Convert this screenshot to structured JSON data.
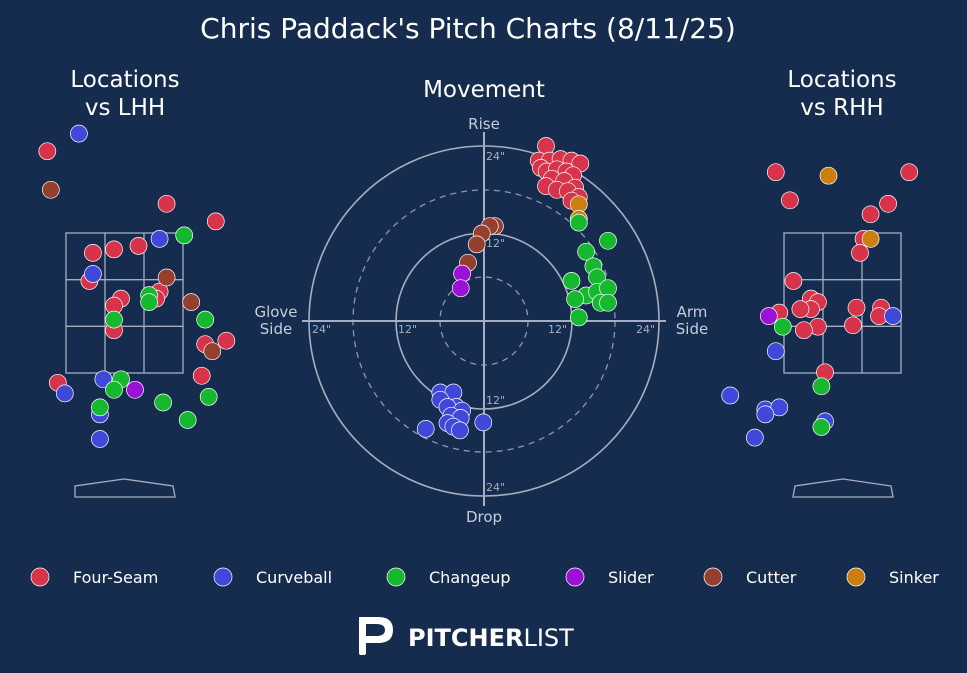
{
  "title": "Chris Paddack's Pitch Charts (8/11/25)",
  "panels": {
    "left": {
      "title_line1": "Locations",
      "title_line2": "vs LHH"
    },
    "center": {
      "title": "Movement",
      "top_label": "Rise",
      "bottom_label": "Drop",
      "left_label_line1": "Glove",
      "left_label_line2": "Side",
      "right_label_line1": "Arm",
      "right_label_line2": "Side",
      "ring_labels": {
        "inner": "12\"",
        "outer": "24\""
      }
    },
    "right": {
      "title_line1": "Locations",
      "title_line2": "vs RHH"
    }
  },
  "colors": {
    "background": "#162c4e",
    "Four-Seam": "#d7334b",
    "Curveball": "#3f48d8",
    "Changeup": "#16b830",
    "Slider": "#9b12d6",
    "Cutter": "#95402f",
    "Sinker": "#cc7f10",
    "grid": "#a6aec0"
  },
  "legend": [
    "Four-Seam",
    "Curveball",
    "Changeup",
    "Slider",
    "Cutter",
    "Sinker"
  ],
  "brand": {
    "text_bold": "PITCHER",
    "text_light": "LIST",
    "logo_icon": "pitcherlist-p-icon"
  },
  "chart_data": [
    {
      "type": "scatter",
      "name": "Locations vs LHH",
      "x_unit": "ft (catcher view, plate-centered)",
      "y_unit": "ft above ground",
      "points": [
        {
          "pitch": "Four-Seam",
          "x": -1.1,
          "y": 4.2
        },
        {
          "pitch": "Four-Seam",
          "x": -2.2,
          "y": 3.15
        },
        {
          "pitch": "Four-Seam",
          "x": 0.6,
          "y": 3.45
        },
        {
          "pitch": "Four-Seam",
          "x": 1.3,
          "y": 3.2
        },
        {
          "pitch": "Four-Seam",
          "x": -0.15,
          "y": 2.8
        },
        {
          "pitch": "Four-Seam",
          "x": 0.2,
          "y": 2.85
        },
        {
          "pitch": "Four-Seam",
          "x": -0.45,
          "y": 2.75
        },
        {
          "pitch": "Four-Seam",
          "x": -0.5,
          "y": 2.35
        },
        {
          "pitch": "Four-Seam",
          "x": -0.05,
          "y": 2.1
        },
        {
          "pitch": "Four-Seam",
          "x": 0.5,
          "y": 2.2
        },
        {
          "pitch": "Four-Seam",
          "x": 0.45,
          "y": 2.1
        },
        {
          "pitch": "Four-Seam",
          "x": -0.15,
          "y": 2.0
        },
        {
          "pitch": "Four-Seam",
          "x": -0.15,
          "y": 1.65
        },
        {
          "pitch": "Four-Seam",
          "x": 1.45,
          "y": 1.5
        },
        {
          "pitch": "Four-Seam",
          "x": 1.15,
          "y": 1.45
        },
        {
          "pitch": "Four-Seam",
          "x": -0.95,
          "y": 0.9
        },
        {
          "pitch": "Four-Seam",
          "x": 1.1,
          "y": 1.0
        },
        {
          "pitch": "Curveball",
          "x": -0.65,
          "y": 4.45
        },
        {
          "pitch": "Curveball",
          "x": 0.5,
          "y": 2.95
        },
        {
          "pitch": "Curveball",
          "x": -0.45,
          "y": 2.45
        },
        {
          "pitch": "Curveball",
          "x": -0.3,
          "y": 0.95
        },
        {
          "pitch": "Curveball",
          "x": -0.85,
          "y": 0.75
        },
        {
          "pitch": "Curveball",
          "x": -0.35,
          "y": 0.45
        },
        {
          "pitch": "Curveball",
          "x": -0.35,
          "y": 0.1
        },
        {
          "pitch": "Changeup",
          "x": 0.85,
          "y": 3.0
        },
        {
          "pitch": "Changeup",
          "x": 0.35,
          "y": 2.15
        },
        {
          "pitch": "Changeup",
          "x": 0.35,
          "y": 2.05
        },
        {
          "pitch": "Changeup",
          "x": -0.15,
          "y": 1.8
        },
        {
          "pitch": "Changeup",
          "x": 1.15,
          "y": 1.8
        },
        {
          "pitch": "Changeup",
          "x": -0.05,
          "y": 0.95
        },
        {
          "pitch": "Changeup",
          "x": -0.15,
          "y": 0.8
        },
        {
          "pitch": "Changeup",
          "x": 1.2,
          "y": 0.7
        },
        {
          "pitch": "Changeup",
          "x": -0.35,
          "y": 0.55
        },
        {
          "pitch": "Changeup",
          "x": 0.55,
          "y": 0.62
        },
        {
          "pitch": "Changeup",
          "x": 0.9,
          "y": 0.37
        },
        {
          "pitch": "Slider",
          "x": 0.15,
          "y": 0.8
        },
        {
          "pitch": "Cutter",
          "x": -1.05,
          "y": 3.65
        },
        {
          "pitch": "Cutter",
          "x": 0.6,
          "y": 2.4
        },
        {
          "pitch": "Cutter",
          "x": 0.95,
          "y": 2.05
        },
        {
          "pitch": "Cutter",
          "x": 1.25,
          "y": 1.35
        }
      ]
    },
    {
      "type": "scatter",
      "name": "Movement",
      "x_label": "Glove Side / Arm Side",
      "y_label": "Drop / Rise",
      "x_unit": "in (horizontal break)",
      "y_unit": "in (induced vertical break)",
      "xlim": [
        -30,
        30
      ],
      "ylim": [
        -30,
        30
      ],
      "rings_in": [
        6,
        12,
        18,
        24
      ],
      "points": [
        {
          "pitch": "Four-Seam",
          "x": 8.5,
          "y": 24.0
        },
        {
          "pitch": "Four-Seam",
          "x": 7.5,
          "y": 22.0
        },
        {
          "pitch": "Four-Seam",
          "x": 9.0,
          "y": 22.0
        },
        {
          "pitch": "Four-Seam",
          "x": 10.5,
          "y": 22.2
        },
        {
          "pitch": "Four-Seam",
          "x": 12.0,
          "y": 22.0
        },
        {
          "pitch": "Four-Seam",
          "x": 13.2,
          "y": 21.6
        },
        {
          "pitch": "Four-Seam",
          "x": 7.8,
          "y": 21.0
        },
        {
          "pitch": "Four-Seam",
          "x": 8.6,
          "y": 20.5
        },
        {
          "pitch": "Four-Seam",
          "x": 10.0,
          "y": 20.8
        },
        {
          "pitch": "Four-Seam",
          "x": 11.3,
          "y": 20.5
        },
        {
          "pitch": "Four-Seam",
          "x": 12.2,
          "y": 20.0
        },
        {
          "pitch": "Four-Seam",
          "x": 9.3,
          "y": 19.5
        },
        {
          "pitch": "Four-Seam",
          "x": 11.0,
          "y": 19.2
        },
        {
          "pitch": "Four-Seam",
          "x": 8.5,
          "y": 18.5
        },
        {
          "pitch": "Four-Seam",
          "x": 12.5,
          "y": 18.3
        },
        {
          "pitch": "Four-Seam",
          "x": 10.0,
          "y": 18.0
        },
        {
          "pitch": "Four-Seam",
          "x": 11.5,
          "y": 17.8
        },
        {
          "pitch": "Four-Seam",
          "x": 13.0,
          "y": 17.0
        },
        {
          "pitch": "Four-Seam",
          "x": 12.0,
          "y": 16.5
        },
        {
          "pitch": "Sinker",
          "x": 13.0,
          "y": 16.0
        },
        {
          "pitch": "Sinker",
          "x": 13.0,
          "y": 14.0
        },
        {
          "pitch": "Changeup",
          "x": 13.0,
          "y": 13.5
        },
        {
          "pitch": "Changeup",
          "x": 17.0,
          "y": 11.0
        },
        {
          "pitch": "Changeup",
          "x": 14.0,
          "y": 9.5
        },
        {
          "pitch": "Changeup",
          "x": 15.0,
          "y": 7.5
        },
        {
          "pitch": "Changeup",
          "x": 15.5,
          "y": 6.0
        },
        {
          "pitch": "Changeup",
          "x": 12.0,
          "y": 5.5
        },
        {
          "pitch": "Changeup",
          "x": 14.0,
          "y": 3.5
        },
        {
          "pitch": "Changeup",
          "x": 15.5,
          "y": 4.0
        },
        {
          "pitch": "Changeup",
          "x": 17.0,
          "y": 4.5
        },
        {
          "pitch": "Changeup",
          "x": 12.5,
          "y": 3.0
        },
        {
          "pitch": "Changeup",
          "x": 16.0,
          "y": 2.5
        },
        {
          "pitch": "Changeup",
          "x": 17.0,
          "y": 2.5
        },
        {
          "pitch": "Changeup",
          "x": 13.0,
          "y": 0.5
        },
        {
          "pitch": "Cutter",
          "x": 1.5,
          "y": 13.0
        },
        {
          "pitch": "Cutter",
          "x": 0.8,
          "y": 13.0
        },
        {
          "pitch": "Cutter",
          "x": -0.3,
          "y": 12.0
        },
        {
          "pitch": "Cutter",
          "x": -1.0,
          "y": 10.5
        },
        {
          "pitch": "Cutter",
          "x": -2.2,
          "y": 8.0
        },
        {
          "pitch": "Slider",
          "x": -3.0,
          "y": 6.5
        },
        {
          "pitch": "Slider",
          "x": -3.2,
          "y": 4.5
        },
        {
          "pitch": "Curveball",
          "x": -6.0,
          "y": -9.8
        },
        {
          "pitch": "Curveball",
          "x": -4.2,
          "y": -9.8
        },
        {
          "pitch": "Curveball",
          "x": -6.0,
          "y": -10.8
        },
        {
          "pitch": "Curveball",
          "x": -3.8,
          "y": -11.8
        },
        {
          "pitch": "Curveball",
          "x": -5.0,
          "y": -11.8
        },
        {
          "pitch": "Curveball",
          "x": -3.0,
          "y": -12.3
        },
        {
          "pitch": "Curveball",
          "x": -4.5,
          "y": -13.0
        },
        {
          "pitch": "Curveball",
          "x": -3.2,
          "y": -13.3
        },
        {
          "pitch": "Curveball",
          "x": -5.0,
          "y": -14.0
        },
        {
          "pitch": "Curveball",
          "x": -4.2,
          "y": -14.5
        },
        {
          "pitch": "Curveball",
          "x": -3.3,
          "y": -15.0
        },
        {
          "pitch": "Curveball",
          "x": -8.0,
          "y": -14.8
        },
        {
          "pitch": "Curveball",
          "x": -0.1,
          "y": -13.9
        }
      ]
    },
    {
      "type": "scatter",
      "name": "Locations vs RHH",
      "x_unit": "ft (catcher view, plate-centered)",
      "y_unit": "ft above ground",
      "points": [
        {
          "pitch": "Four-Seam",
          "x": -0.95,
          "y": 3.9
        },
        {
          "pitch": "Four-Seam",
          "x": 0.95,
          "y": 3.9
        },
        {
          "pitch": "Four-Seam",
          "x": -0.75,
          "y": 3.5
        },
        {
          "pitch": "Four-Seam",
          "x": 0.65,
          "y": 3.45
        },
        {
          "pitch": "Four-Seam",
          "x": 0.4,
          "y": 3.3
        },
        {
          "pitch": "Four-Seam",
          "x": 0.3,
          "y": 2.95
        },
        {
          "pitch": "Four-Seam",
          "x": 0.25,
          "y": 2.75
        },
        {
          "pitch": "Four-Seam",
          "x": -0.7,
          "y": 2.35
        },
        {
          "pitch": "Four-Seam",
          "x": -0.45,
          "y": 2.1
        },
        {
          "pitch": "Four-Seam",
          "x": -0.35,
          "y": 2.05
        },
        {
          "pitch": "Four-Seam",
          "x": -0.45,
          "y": 1.95
        },
        {
          "pitch": "Four-Seam",
          "x": -0.6,
          "y": 1.95
        },
        {
          "pitch": "Four-Seam",
          "x": -0.9,
          "y": 1.9
        },
        {
          "pitch": "Four-Seam",
          "x": 0.2,
          "y": 1.97
        },
        {
          "pitch": "Four-Seam",
          "x": 0.55,
          "y": 1.97
        },
        {
          "pitch": "Four-Seam",
          "x": 0.52,
          "y": 1.85
        },
        {
          "pitch": "Four-Seam",
          "x": -0.35,
          "y": 1.7
        },
        {
          "pitch": "Four-Seam",
          "x": -0.55,
          "y": 1.65
        },
        {
          "pitch": "Four-Seam",
          "x": 0.15,
          "y": 1.72
        },
        {
          "pitch": "Four-Seam",
          "x": -0.25,
          "y": 1.05
        },
        {
          "pitch": "Sinker",
          "x": -0.2,
          "y": 3.85
        },
        {
          "pitch": "Sinker",
          "x": 0.4,
          "y": 2.95
        },
        {
          "pitch": "Curveball",
          "x": 0.72,
          "y": 1.85
        },
        {
          "pitch": "Curveball",
          "x": -0.95,
          "y": 1.35
        },
        {
          "pitch": "Curveball",
          "x": -1.6,
          "y": 0.72
        },
        {
          "pitch": "Curveball",
          "x": -1.1,
          "y": 0.52
        },
        {
          "pitch": "Curveball",
          "x": -0.9,
          "y": 0.55
        },
        {
          "pitch": "Curveball",
          "x": -1.1,
          "y": 0.45
        },
        {
          "pitch": "Curveball",
          "x": -1.25,
          "y": 0.12
        },
        {
          "pitch": "Curveball",
          "x": -0.25,
          "y": 0.35
        },
        {
          "pitch": "Changeup",
          "x": -0.85,
          "y": 1.7
        },
        {
          "pitch": "Changeup",
          "x": -0.3,
          "y": 0.85
        },
        {
          "pitch": "Changeup",
          "x": -0.3,
          "y": 0.27
        },
        {
          "pitch": "Slider",
          "x": -1.05,
          "y": 1.85
        }
      ]
    }
  ]
}
